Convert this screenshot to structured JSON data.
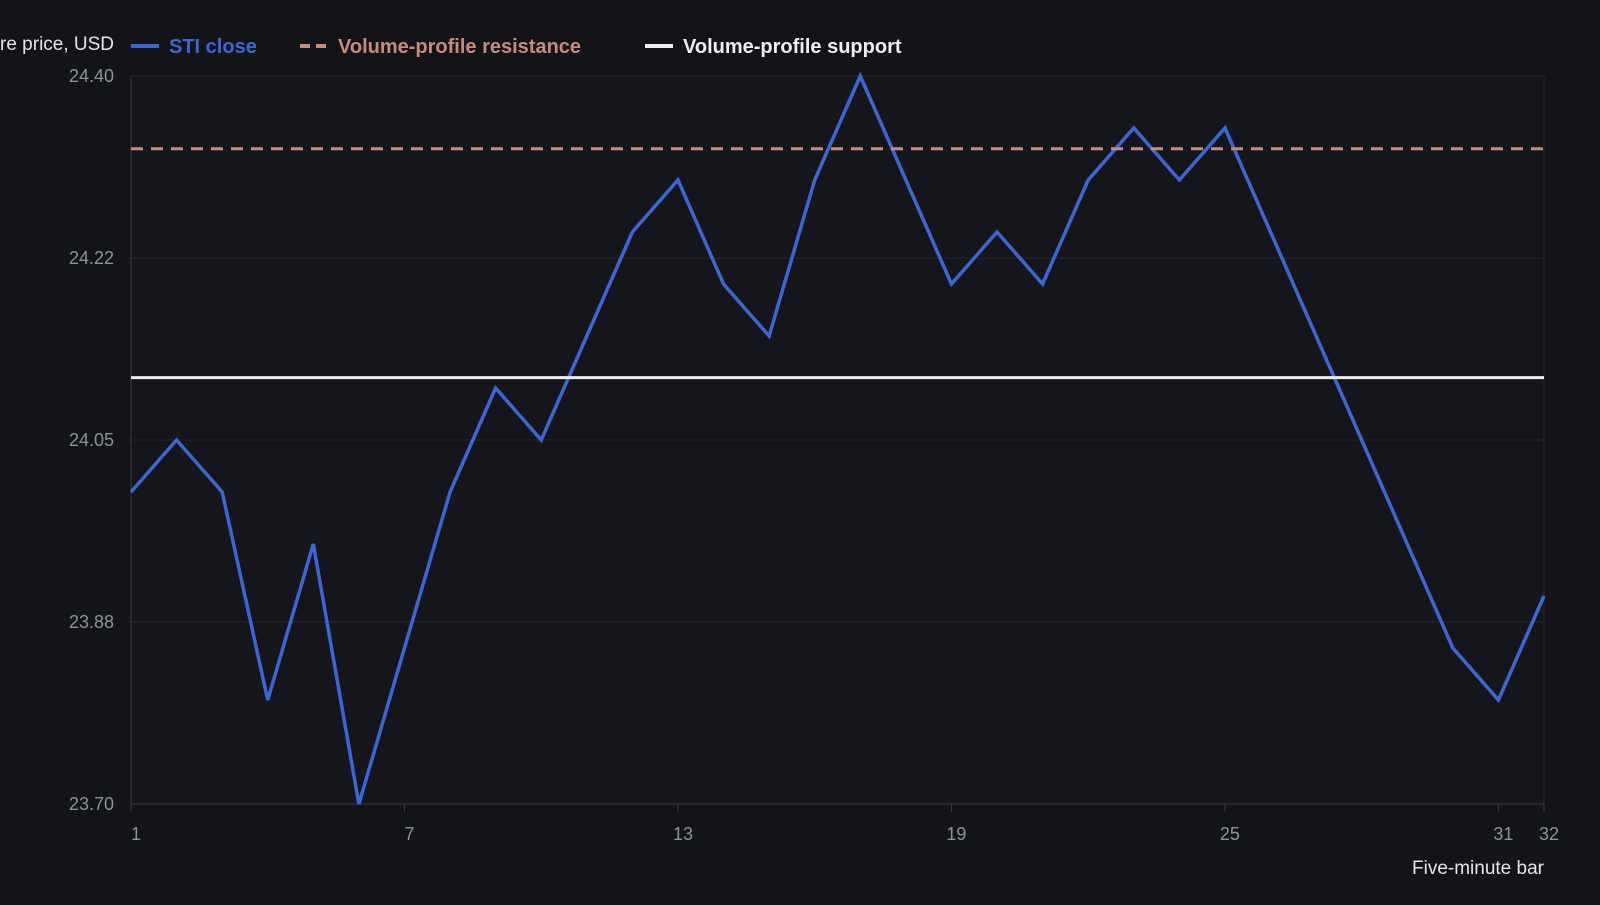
{
  "chart_data": {
    "type": "line",
    "title": "",
    "xlabel": "Five-minute bar",
    "ylabel": "re price, USD",
    "x": [
      1,
      2,
      3,
      4,
      5,
      6,
      7,
      8,
      9,
      10,
      11,
      12,
      13,
      14,
      15,
      16,
      17,
      18,
      19,
      20,
      21,
      22,
      23,
      24,
      25,
      26,
      27,
      28,
      29,
      30,
      31,
      32
    ],
    "xlim": [
      1,
      32
    ],
    "ylim": [
      23.7,
      24.4
    ],
    "x_ticks": [
      "1",
      "7",
      "13",
      "19",
      "25",
      "31",
      "32"
    ],
    "y_ticks": [
      "23.70",
      "23.88",
      "24.05",
      "24.22",
      "24.40"
    ],
    "y_grid": [
      23.7,
      23.875,
      24.05,
      24.225,
      24.4
    ],
    "grid": true,
    "legend_position": "top",
    "series": [
      {
        "name": "STI close",
        "color": "#3a67d6",
        "style": "solid",
        "values": [
          24.0,
          24.05,
          24.0,
          23.8,
          23.95,
          23.7,
          23.85,
          24.0,
          24.1,
          24.05,
          24.15,
          24.25,
          24.3,
          24.2,
          24.15,
          24.3,
          24.4,
          24.3,
          24.2,
          24.25,
          24.2,
          24.3,
          24.35,
          24.3,
          24.35,
          24.25,
          24.15,
          24.05,
          23.95,
          23.85,
          23.8,
          23.9
        ]
      },
      {
        "name": "Volume-profile resistance",
        "color": "#c98a7e",
        "style": "dashed",
        "value": 24.33
      },
      {
        "name": "Volume-profile support",
        "color": "#eeeeee",
        "style": "solid",
        "value": 24.11
      }
    ]
  }
}
